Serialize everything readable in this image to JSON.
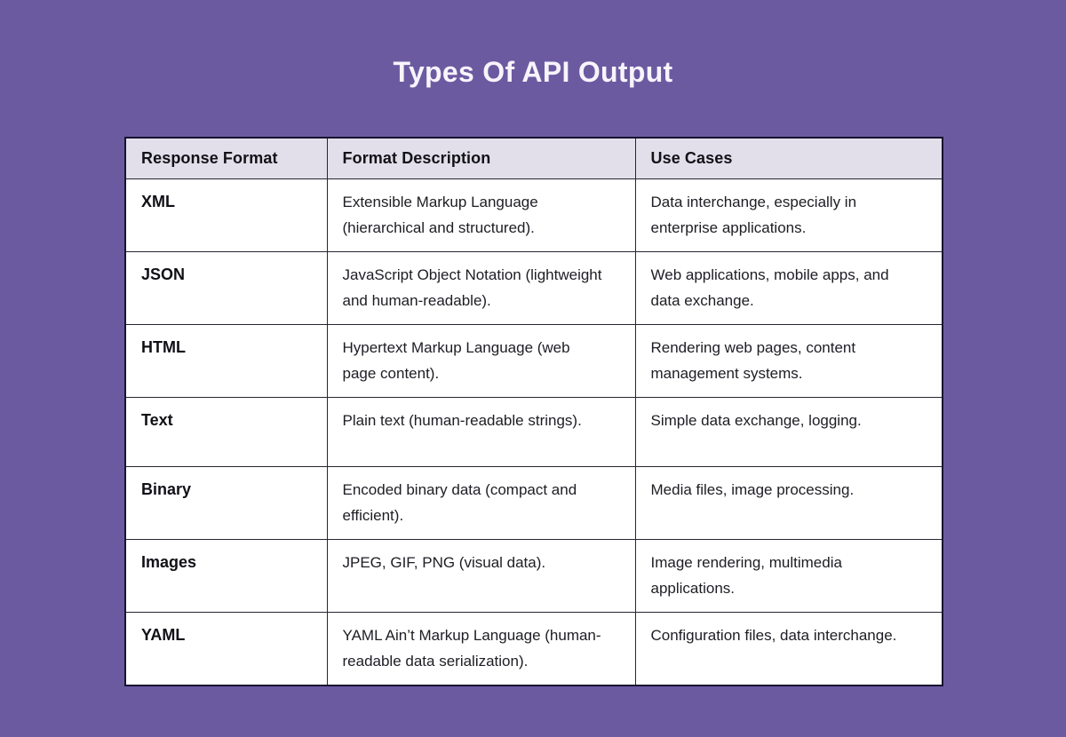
{
  "page": {
    "title": "Types Of API Output",
    "background_color": "#6c5aa1",
    "title_color": "#f7f4fb"
  },
  "table": {
    "header_bg_color": "#e2dfeb",
    "headers": [
      "Response Format",
      "Format Description",
      "Use Cases"
    ],
    "rows": [
      {
        "format": "XML",
        "description": "Extensible Markup Language (hierarchical and structured).",
        "use_cases": "Data interchange, especially in enterprise applications."
      },
      {
        "format": "JSON",
        "description": "JavaScript Object Notation (lightweight and human-readable).",
        "use_cases": "Web applications, mobile apps, and data exchange."
      },
      {
        "format": "HTML",
        "description": "Hypertext Markup Language (web page content).",
        "use_cases": "Rendering web pages, content management systems."
      },
      {
        "format": "Text",
        "description": "Plain text (human-readable strings).",
        "use_cases": "Simple data exchange, logging."
      },
      {
        "format": "Binary",
        "description": "Encoded binary data (compact and efficient).",
        "use_cases": "Media files, image processing."
      },
      {
        "format": "Images",
        "description": "JPEG, GIF, PNG (visual data).",
        "use_cases": "Image rendering, multimedia applications."
      },
      {
        "format": "YAML",
        "description": "YAML Ain’t Markup Language (human-readable data serialization).",
        "use_cases": "Configuration files, data interchange."
      }
    ]
  }
}
